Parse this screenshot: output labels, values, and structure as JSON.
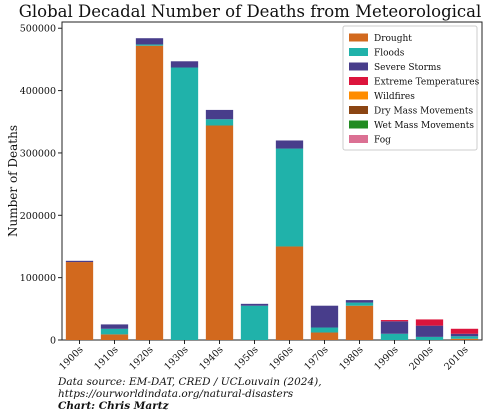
{
  "chart_data": {
    "type": "bar",
    "stacked": true,
    "title": "Global Decadal Number of Deaths from Meteorological Disasters",
    "ylabel": "Number of Deaths",
    "xlabel": "",
    "ylim": [
      0,
      510000
    ],
    "yticks": [
      0,
      100000,
      200000,
      300000,
      400000,
      500000
    ],
    "ytick_labels": [
      "0",
      "100000",
      "200000",
      "300000",
      "400000",
      "500000"
    ],
    "categories": [
      "1900s",
      "1910s",
      "1920s",
      "1930s",
      "1940s",
      "1950s",
      "1960s",
      "1970s",
      "1980s",
      "1990s",
      "2000s",
      "2010s"
    ],
    "legend_position": "top-right",
    "series": [
      {
        "name": "Drought",
        "color": "#d2691e",
        "values": [
          125000,
          9000,
          472000,
          0,
          344000,
          0,
          150000,
          12000,
          55000,
          0,
          0,
          2000
        ]
      },
      {
        "name": "Floods",
        "color": "#20b2aa",
        "values": [
          0,
          9000,
          2000,
          437000,
          10000,
          55000,
          157000,
          8000,
          5000,
          10000,
          5000,
          4000
        ]
      },
      {
        "name": "Severe Storms",
        "color": "#483d8b",
        "values": [
          2000,
          7000,
          10000,
          10000,
          15000,
          3000,
          13000,
          35000,
          4000,
          20000,
          18000,
          4000
        ]
      },
      {
        "name": "Extreme Temperatures",
        "color": "#dc143c",
        "values": [
          0,
          0,
          0,
          0,
          0,
          0,
          0,
          0,
          0,
          2000,
          10000,
          8000
        ]
      },
      {
        "name": "Wildfires",
        "color": "#ff8c00",
        "values": [
          0,
          0,
          0,
          0,
          0,
          0,
          0,
          0,
          0,
          0,
          0,
          0
        ]
      },
      {
        "name": "Dry Mass Movements",
        "color": "#8b4513",
        "values": [
          0,
          0,
          0,
          0,
          0,
          0,
          0,
          0,
          0,
          0,
          0,
          0
        ]
      },
      {
        "name": "Wet Mass Movements",
        "color": "#228b22",
        "values": [
          0,
          0,
          0,
          0,
          0,
          0,
          0,
          0,
          0,
          0,
          0,
          0
        ]
      },
      {
        "name": "Fog",
        "color": "#db7093",
        "values": [
          0,
          0,
          0,
          0,
          0,
          0,
          0,
          0,
          0,
          0,
          0,
          0
        ]
      }
    ],
    "grid": false
  },
  "footer": {
    "source_line1": "Data source: EM-DAT, CRED / UCLouvain (2024),",
    "source_line2": "https://ourworldindata.org/natural-disasters",
    "credit": "Chart: Chris Martz"
  }
}
